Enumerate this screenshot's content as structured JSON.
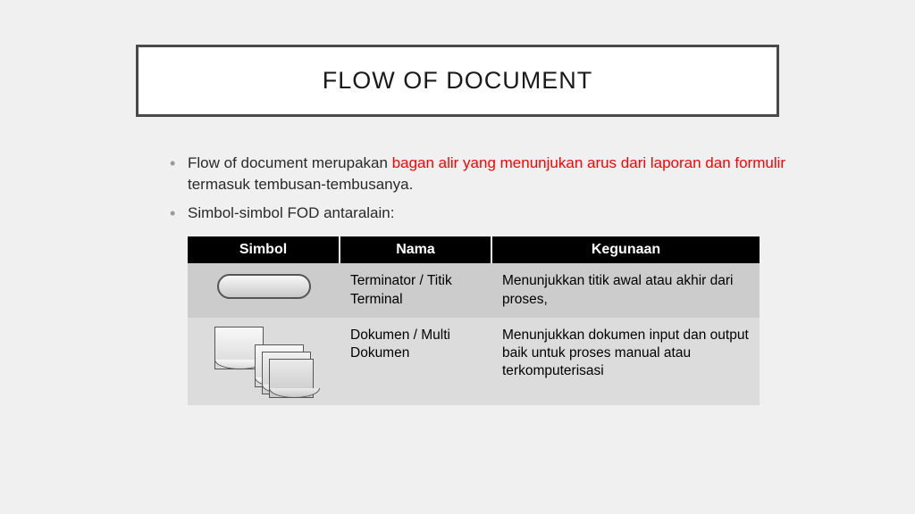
{
  "title": "FLOW OF DOCUMENT",
  "bullets": [
    {
      "pre": "Flow of document merupakan ",
      "highlight": "bagan alir yang  menunjukan arus dari laporan dan formulir",
      "post": "  termasuk tembusan-tembusanya."
    },
    {
      "pre": "Simbol-simbol FOD antaralain:",
      "highlight": "",
      "post": ""
    }
  ],
  "table": {
    "headers": [
      "Simbol",
      "Nama",
      "Kegunaan"
    ],
    "rows": [
      {
        "symbol": "terminator",
        "nama": "Terminator / Titik Terminal",
        "kegunaan": "Menunjukkan titik awal atau akhir dari proses,"
      },
      {
        "symbol": "document",
        "nama": "Dokumen / Multi Dokumen",
        "kegunaan": "Menunjukkan dokumen input dan output baik untuk proses manual atau terkomputerisasi"
      }
    ],
    "header_bg": "#000000",
    "header_color": "#ffffff",
    "row_colors": [
      "#cccccc",
      "#dcdcdc"
    ]
  },
  "colors": {
    "background": "#f0f0f0",
    "title_border": "#4a4a4a",
    "highlight_text": "#ff0000"
  }
}
